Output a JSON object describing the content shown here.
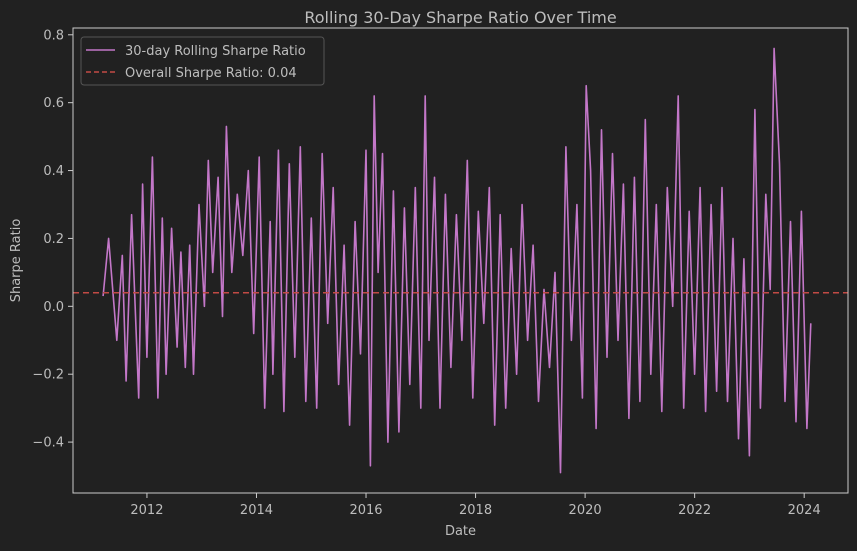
{
  "chart_data": {
    "type": "line",
    "title": "Rolling 30-Day Sharpe Ratio Over Time",
    "xlabel": "Date",
    "ylabel": "Sharpe Ratio",
    "xlim": [
      2010.65,
      2024.8
    ],
    "ylim": [
      -0.55,
      0.82
    ],
    "x_ticks": [
      2012,
      2014,
      2016,
      2018,
      2020,
      2022,
      2024
    ],
    "x_tick_labels": [
      "2012",
      "2014",
      "2016",
      "2018",
      "2020",
      "2022",
      "2024"
    ],
    "y_ticks": [
      -0.4,
      -0.2,
      0.0,
      0.2,
      0.4,
      0.6,
      0.8
    ],
    "y_tick_labels": [
      "−0.4",
      "−0.2",
      "0.0",
      "0.2",
      "0.4",
      "0.6",
      "0.8"
    ],
    "grid": false,
    "legend_position": "top-left",
    "colors": {
      "background": "#212121",
      "axes": "#cccccc",
      "text": "#bdbdbd",
      "series": "#c377c8",
      "reference": "#c24a45"
    },
    "series": [
      {
        "name": "30-day Rolling Sharpe Ratio",
        "style": "solid",
        "x": [
          2011.2,
          2011.3,
          2011.45,
          2011.55,
          2011.62,
          2011.72,
          2011.85,
          2011.92,
          2012.0,
          2012.1,
          2012.2,
          2012.28,
          2012.35,
          2012.45,
          2012.55,
          2012.62,
          2012.7,
          2012.78,
          2012.85,
          2012.95,
          2013.05,
          2013.12,
          2013.2,
          2013.3,
          2013.38,
          2013.45,
          2013.55,
          2013.65,
          2013.75,
          2013.85,
          2013.95,
          2014.05,
          2014.15,
          2014.25,
          2014.3,
          2014.4,
          2014.5,
          2014.6,
          2014.7,
          2014.8,
          2014.9,
          2015.0,
          2015.1,
          2015.2,
          2015.3,
          2015.4,
          2015.5,
          2015.6,
          2015.7,
          2015.8,
          2015.9,
          2016.0,
          2016.08,
          2016.15,
          2016.22,
          2016.3,
          2016.4,
          2016.5,
          2016.6,
          2016.7,
          2016.8,
          2016.9,
          2017.0,
          2017.08,
          2017.15,
          2017.25,
          2017.35,
          2017.45,
          2017.55,
          2017.65,
          2017.75,
          2017.85,
          2017.95,
          2018.05,
          2018.15,
          2018.25,
          2018.35,
          2018.45,
          2018.55,
          2018.65,
          2018.75,
          2018.85,
          2018.95,
          2019.05,
          2019.15,
          2019.25,
          2019.35,
          2019.45,
          2019.55,
          2019.65,
          2019.75,
          2019.85,
          2019.95,
          2020.02,
          2020.1,
          2020.2,
          2020.3,
          2020.4,
          2020.5,
          2020.6,
          2020.7,
          2020.8,
          2020.9,
          2021.0,
          2021.1,
          2021.2,
          2021.3,
          2021.4,
          2021.5,
          2021.6,
          2021.7,
          2021.8,
          2021.9,
          2022.0,
          2022.1,
          2022.2,
          2022.3,
          2022.4,
          2022.5,
          2022.6,
          2022.7,
          2022.8,
          2022.9,
          2023.0,
          2023.1,
          2023.2,
          2023.3,
          2023.38,
          2023.45,
          2023.55,
          2023.65,
          2023.75,
          2023.85,
          2023.95,
          2024.05,
          2024.12
        ],
        "values": [
          0.03,
          0.2,
          -0.1,
          0.15,
          -0.22,
          0.27,
          -0.27,
          0.36,
          -0.15,
          0.44,
          -0.27,
          0.26,
          -0.2,
          0.23,
          -0.12,
          0.16,
          -0.18,
          0.18,
          -0.2,
          0.3,
          0.0,
          0.43,
          0.1,
          0.38,
          -0.03,
          0.53,
          0.1,
          0.33,
          0.15,
          0.4,
          -0.08,
          0.44,
          -0.3,
          0.25,
          -0.2,
          0.46,
          -0.31,
          0.42,
          -0.15,
          0.47,
          -0.28,
          0.26,
          -0.3,
          0.45,
          -0.05,
          0.35,
          -0.23,
          0.18,
          -0.35,
          0.25,
          -0.14,
          0.46,
          -0.47,
          0.62,
          0.1,
          0.45,
          -0.4,
          0.34,
          -0.37,
          0.29,
          -0.23,
          0.35,
          -0.3,
          0.62,
          -0.1,
          0.38,
          -0.3,
          0.33,
          -0.18,
          0.27,
          -0.1,
          0.43,
          -0.27,
          0.28,
          -0.05,
          0.35,
          -0.35,
          0.27,
          -0.3,
          0.17,
          -0.2,
          0.3,
          -0.1,
          0.18,
          -0.28,
          0.05,
          -0.18,
          0.1,
          -0.49,
          0.47,
          -0.1,
          0.3,
          -0.27,
          0.65,
          0.4,
          -0.36,
          0.52,
          -0.15,
          0.45,
          -0.1,
          0.36,
          -0.33,
          0.38,
          -0.28,
          0.55,
          -0.2,
          0.3,
          -0.31,
          0.35,
          0.0,
          0.62,
          -0.3,
          0.28,
          -0.2,
          0.35,
          -0.31,
          0.3,
          -0.25,
          0.35,
          -0.28,
          0.2,
          -0.39,
          0.14,
          -0.44,
          0.58,
          -0.3,
          0.33,
          0.05,
          0.76,
          0.42,
          -0.28,
          0.25,
          -0.34,
          0.28,
          -0.36,
          -0.05
        ]
      },
      {
        "name": "Overall Sharpe Ratio: 0.04",
        "style": "dashed",
        "constant": 0.04
      }
    ]
  }
}
